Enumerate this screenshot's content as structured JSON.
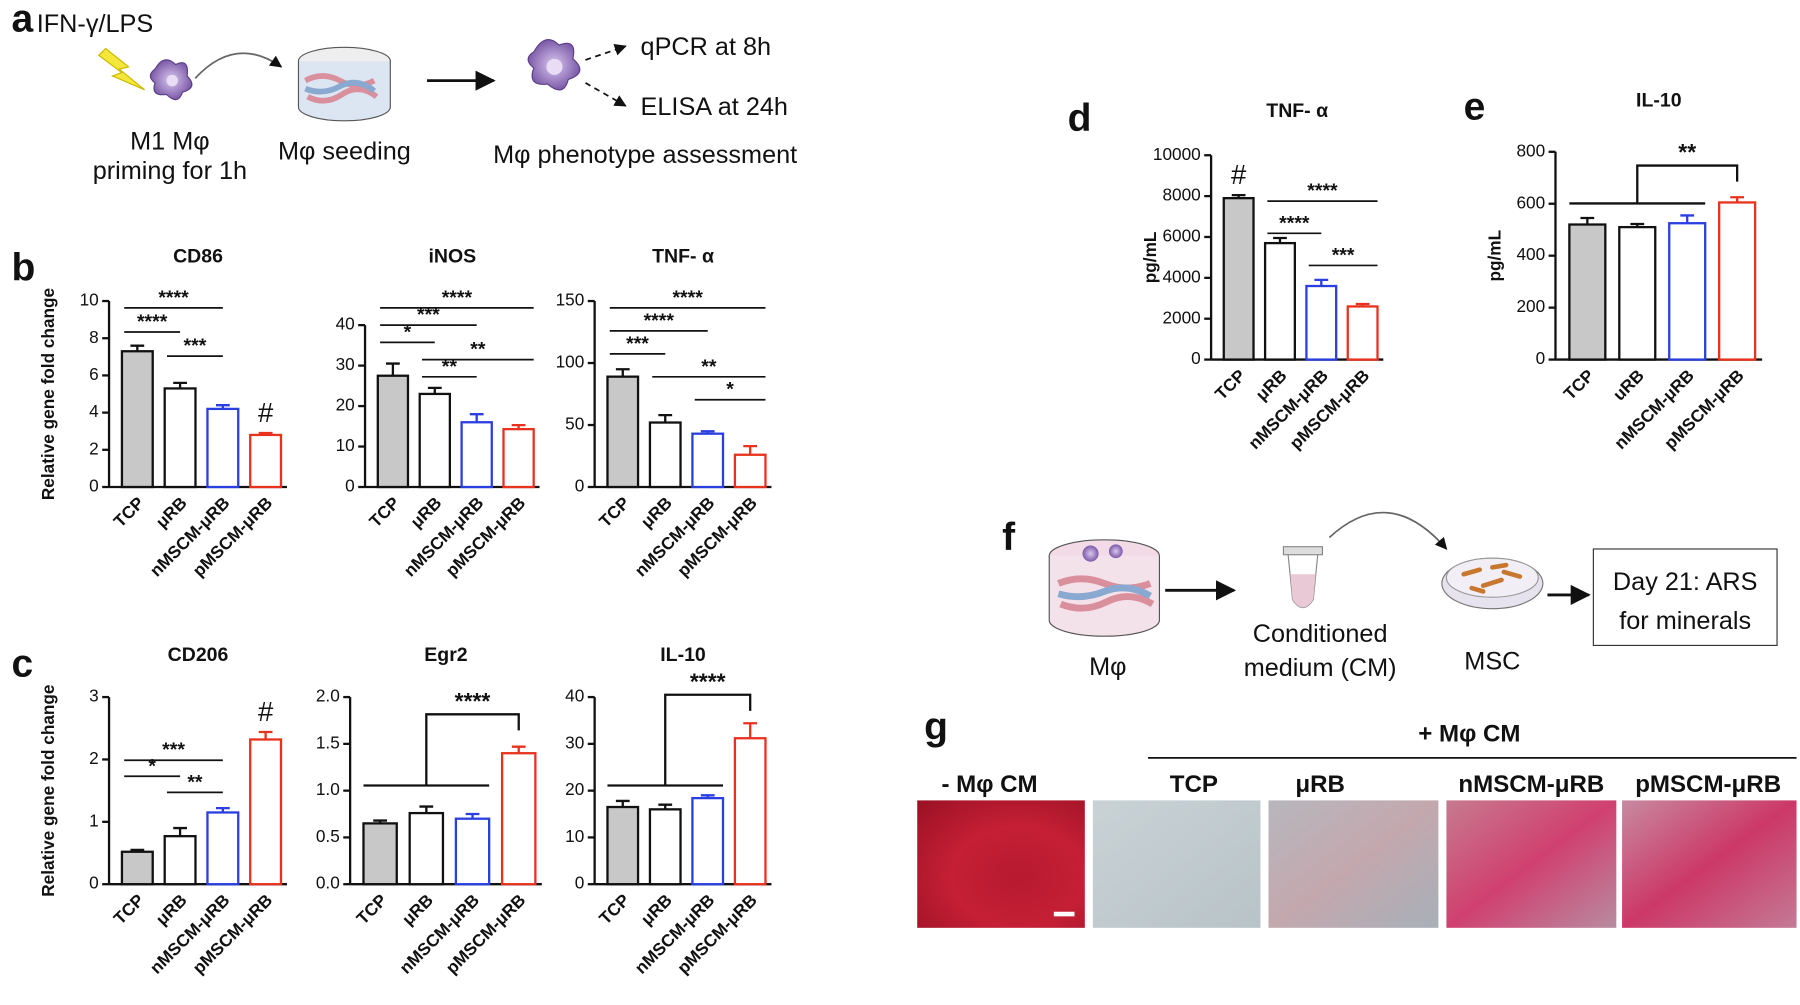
{
  "panel_letters": [
    "a",
    "b",
    "c",
    "d",
    "e",
    "f",
    "g"
  ],
  "diagram_a": {
    "stimulus": "IFN-γ/LPS",
    "cell_label": "M1 Mφ",
    "priming": "priming for 1h",
    "seeding": "Mφ seeding",
    "assessment": "Mφ phenotype assessment",
    "qpcr": "qPCR at 8h",
    "elisa": "ELISA at 24h"
  },
  "diagram_f": {
    "cell": "Mφ",
    "medium_line1": "Conditioned",
    "medium_line2": "medium (CM)",
    "msc": "MSC",
    "result_line1": "Day 21: ARS",
    "result_line2": "for minerals"
  },
  "panel_g": {
    "group_label": "+ Mφ CM",
    "labels": [
      "- Mφ CM",
      "TCP",
      "μRB",
      "nMSCM-μRB",
      "pMSCM-μRB"
    ]
  },
  "chart_data": [
    {
      "type": "bar",
      "title": "CD86",
      "ylabel": "Relative gene fold change",
      "categories": [
        "TCP",
        "μRB",
        "nMSCM-μRB",
        "pMSCM-μRB"
      ],
      "values": [
        7.3,
        5.3,
        4.2,
        2.8
      ],
      "errors": [
        0.3,
        0.3,
        0.2,
        0.1
      ],
      "fill_colors": [
        "#c8c8c8",
        "#ffffff",
        "#ffffff",
        "#ffffff"
      ],
      "edge_colors": [
        "#111111",
        "#111111",
        "#2a3fe0",
        "#e8321e"
      ],
      "ylim": [
        0,
        10
      ],
      "yticks": [
        0,
        2,
        4,
        6,
        8,
        10
      ],
      "annotations": [
        {
          "text": "****",
          "from": "TCP",
          "to": "nMSCM-μRB"
        },
        {
          "text": "****",
          "from": "TCP",
          "to": "μRB"
        },
        {
          "text": "***",
          "from": "μRB",
          "to": "nMSCM-μRB"
        },
        {
          "text": "#",
          "on": "pMSCM-μRB"
        }
      ]
    },
    {
      "type": "bar",
      "title": "iNOS",
      "categories": [
        "TCP",
        "μRB",
        "nMSCM-μRB",
        "pMSCM-μRB"
      ],
      "values": [
        27.5,
        23,
        16,
        14.3
      ],
      "errors": [
        3,
        1.5,
        2,
        1
      ],
      "fill_colors": [
        "#c8c8c8",
        "#ffffff",
        "#ffffff",
        "#ffffff"
      ],
      "edge_colors": [
        "#111111",
        "#111111",
        "#2a3fe0",
        "#e8321e"
      ],
      "ylim": [
        0,
        40
      ],
      "yticks": [
        0,
        10,
        20,
        30,
        40
      ],
      "annotations": [
        {
          "text": "****",
          "from": "TCP",
          "to": "pMSCM-μRB"
        },
        {
          "text": "***",
          "from": "TCP",
          "to": "nMSCM-μRB"
        },
        {
          "text": "*",
          "from": "TCP",
          "to": "μRB"
        },
        {
          "text": "**",
          "from": "μRB",
          "to": "pMSCM-μRB"
        },
        {
          "text": "**",
          "from": "μRB",
          "to": "nMSCM-μRB"
        }
      ]
    },
    {
      "type": "bar",
      "title": "TNF- α",
      "categories": [
        "TCP",
        "μRB",
        "nMSCM-μRB",
        "pMSCM-μRB"
      ],
      "values": [
        89,
        52,
        43,
        26
      ],
      "errors": [
        6,
        6,
        2,
        7
      ],
      "fill_colors": [
        "#c8c8c8",
        "#ffffff",
        "#ffffff",
        "#ffffff"
      ],
      "edge_colors": [
        "#111111",
        "#111111",
        "#2a3fe0",
        "#e8321e"
      ],
      "ylim": [
        0,
        150
      ],
      "yticks": [
        0,
        50,
        100,
        150
      ],
      "annotations": [
        {
          "text": "****",
          "from": "TCP",
          "to": "pMSCM-μRB"
        },
        {
          "text": "****",
          "from": "TCP",
          "to": "nMSCM-μRB"
        },
        {
          "text": "***",
          "from": "TCP",
          "to": "μRB"
        },
        {
          "text": "**",
          "from": "μRB",
          "to": "pMSCM-μRB"
        },
        {
          "text": "*",
          "from": "nMSCM-μRB",
          "to": "pMSCM-μRB"
        }
      ]
    },
    {
      "type": "bar",
      "title": "CD206",
      "ylabel": "Relative gene fold change",
      "categories": [
        "TCP",
        "μRB",
        "nMSCM-μRB",
        "pMSCM-μRB"
      ],
      "values": [
        0.52,
        0.77,
        1.15,
        2.32
      ],
      "errors": [
        0.03,
        0.13,
        0.07,
        0.12
      ],
      "fill_colors": [
        "#c8c8c8",
        "#ffffff",
        "#ffffff",
        "#ffffff"
      ],
      "edge_colors": [
        "#111111",
        "#111111",
        "#2a3fe0",
        "#e8321e"
      ],
      "ylim": [
        0,
        3
      ],
      "yticks": [
        0,
        1,
        2,
        3
      ],
      "annotations": [
        {
          "text": "***",
          "from": "TCP",
          "to": "nMSCM-μRB"
        },
        {
          "text": "*",
          "from": "TCP",
          "to": "μRB"
        },
        {
          "text": "**",
          "from": "μRB",
          "to": "nMSCM-μRB"
        },
        {
          "text": "#",
          "on": "pMSCM-μRB"
        }
      ]
    },
    {
      "type": "bar",
      "title": "Egr2",
      "categories": [
        "TCP",
        "μRB",
        "nMSCM-μRB",
        "pMSCM-μRB"
      ],
      "values": [
        0.65,
        0.76,
        0.7,
        1.4
      ],
      "errors": [
        0.03,
        0.07,
        0.05,
        0.07
      ],
      "fill_colors": [
        "#c8c8c8",
        "#ffffff",
        "#ffffff",
        "#ffffff"
      ],
      "edge_colors": [
        "#111111",
        "#111111",
        "#2a3fe0",
        "#e8321e"
      ],
      "ylim": [
        0,
        2
      ],
      "yticks": [
        {
          "value": 0,
          "label": "0.0"
        },
        0.5,
        {
          "value": 1,
          "label": "1.0"
        },
        1.5,
        {
          "value": 2,
          "label": "2.0"
        }
      ],
      "annotations": [
        {
          "text": "****",
          "from": [
            "TCP",
            "μRB",
            "nMSCM-μRB"
          ],
          "to": "pMSCM-μRB"
        }
      ]
    },
    {
      "type": "bar",
      "title": "IL-10",
      "categories": [
        "TCP",
        "μRB",
        "nMSCM-μRB",
        "pMSCM-μRB"
      ],
      "values": [
        16.5,
        16,
        18.4,
        31.2
      ],
      "errors": [
        1.3,
        1,
        0.6,
        3.2
      ],
      "fill_colors": [
        "#c8c8c8",
        "#ffffff",
        "#ffffff",
        "#ffffff"
      ],
      "edge_colors": [
        "#111111",
        "#111111",
        "#2a3fe0",
        "#e8321e"
      ],
      "ylim": [
        0,
        40
      ],
      "yticks": [
        0,
        10,
        20,
        30,
        40
      ],
      "annotations": [
        {
          "text": "****",
          "from": [
            "TCP",
            "μRB",
            "nMSCM-μRB"
          ],
          "to": "pMSCM-μRB"
        }
      ]
    },
    {
      "type": "bar",
      "title": "TNF- α",
      "ylabel": "pg/mL",
      "categories": [
        "TCP",
        "μRB",
        "nMSCM-μRB",
        "pMSCM-μRB"
      ],
      "values": [
        7900,
        5700,
        3600,
        2600
      ],
      "errors": [
        150,
        250,
        300,
        120
      ],
      "fill_colors": [
        "#c8c8c8",
        "#ffffff",
        "#ffffff",
        "#ffffff"
      ],
      "edge_colors": [
        "#111111",
        "#111111",
        "#2a3fe0",
        "#e8321e"
      ],
      "ylim": [
        0,
        10000
      ],
      "yticks": [
        0,
        2000,
        4000,
        6000,
        8000,
        10000
      ],
      "annotations": [
        {
          "text": "****",
          "from": "μRB",
          "to": "pMSCM-μRB"
        },
        {
          "text": "****",
          "from": "μRB",
          "to": "nMSCM-μRB"
        },
        {
          "text": "***",
          "from": "nMSCM-μRB",
          "to": "pMSCM-μRB"
        },
        {
          "text": "#",
          "on": "TCP"
        }
      ]
    },
    {
      "type": "bar",
      "title": "IL-10",
      "ylabel": "pg/mL",
      "categories": [
        "TCP",
        "uRB",
        "nMSCM-μRB",
        "pMSCM-μRB"
      ],
      "values": [
        520,
        510,
        525,
        605
      ],
      "errors": [
        25,
        12,
        30,
        20
      ],
      "fill_colors": [
        "#c8c8c8",
        "#ffffff",
        "#ffffff",
        "#ffffff"
      ],
      "edge_colors": [
        "#111111",
        "#111111",
        "#2a3fe0",
        "#e8321e"
      ],
      "ylim": [
        0,
        800
      ],
      "yticks": [
        0,
        200,
        400,
        600,
        800
      ],
      "annotations": [
        {
          "text": "**",
          "from": [
            "TCP",
            "uRB",
            "nMSCM-μRB"
          ],
          "to": "pMSCM-μRB"
        }
      ]
    }
  ]
}
